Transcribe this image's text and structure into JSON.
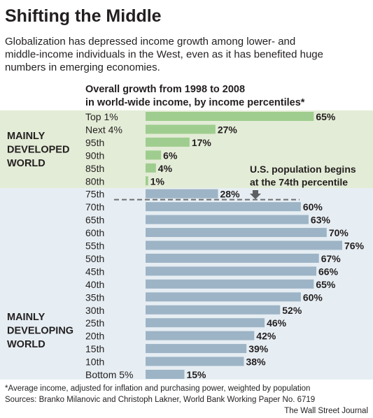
{
  "chart_data": {
    "type": "bar",
    "orientation": "horizontal",
    "title": "Shifting the Middle",
    "subtitle": "Globalization has depressed income growth among lower- and middle-income individuals in the West, even as it has benefited huge numbers in emerging economies.",
    "header": [
      "Overall growth from 1998 to 2008",
      "in world-wide income, by income percentiles*"
    ],
    "categories": [
      "Top 1%",
      "Next 4%",
      "95th",
      "90th",
      "85th",
      "80th",
      "75th",
      "70th",
      "65th",
      "60th",
      "55th",
      "50th",
      "45th",
      "40th",
      "35th",
      "30th",
      "25th",
      "20th",
      "15th",
      "10th",
      "Bottom 5%"
    ],
    "values": [
      65,
      27,
      17,
      6,
      4,
      1,
      28,
      60,
      63,
      70,
      76,
      67,
      66,
      65,
      60,
      52,
      46,
      42,
      39,
      38,
      15
    ],
    "value_labels": [
      "65%",
      "27%",
      "17%",
      "6%",
      "4%",
      "1%",
      "28%",
      "60%",
      "63%",
      "70%",
      "76%",
      "67%",
      "66%",
      "65%",
      "60%",
      "52%",
      "46%",
      "42%",
      "39%",
      "38%",
      "15%"
    ],
    "regions": [
      {
        "label": [
          "MAINLY",
          "DEVELOPED",
          "WORLD"
        ],
        "first_index": 0,
        "last_index": 5,
        "background": "#e3ecd6",
        "bar_color": "#9fcd8f"
      },
      {
        "label": [
          "MAINLY",
          "DEVELOPING",
          "WORLD"
        ],
        "first_index": 6,
        "last_index": 20,
        "background": "#e6eef3",
        "bar_color": "#9db4c6"
      }
    ],
    "annotation": {
      "text": [
        "U.S. population begins",
        "at the 74th percentile"
      ],
      "percentile": 74
    },
    "xlim": [
      0,
      76
    ],
    "footnote": "*Average income, adjusted for inflation and purchasing power, weighted by population",
    "source": "Sources: Branko Milanovic and Christoph Lakner, World Bank Working Paper No. 6719",
    "credit": "The Wall Street Journal"
  }
}
